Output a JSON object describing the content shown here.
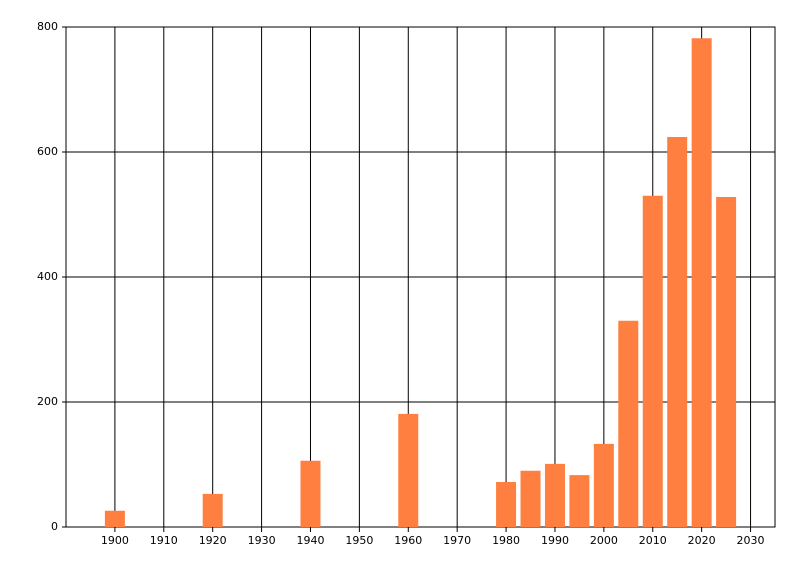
{
  "chart_data": {
    "type": "bar",
    "x": [
      1900,
      1920,
      1940,
      1960,
      1980,
      1985,
      1990,
      1995,
      2000,
      2005,
      2010,
      2015,
      2020,
      2025
    ],
    "values": [
      26,
      53,
      106,
      181,
      72,
      90,
      101,
      83,
      133,
      330,
      530,
      624,
      782,
      528
    ],
    "color": "#ff7f40",
    "xlim": [
      1890,
      2035
    ],
    "xticks": [
      1900,
      1910,
      1920,
      1930,
      1940,
      1950,
      1960,
      1970,
      1980,
      1990,
      2000,
      2010,
      2020,
      2030
    ],
    "ylim": [
      0,
      800
    ],
    "yticks": [
      0,
      200,
      400,
      600,
      800
    ],
    "grid": true
  }
}
